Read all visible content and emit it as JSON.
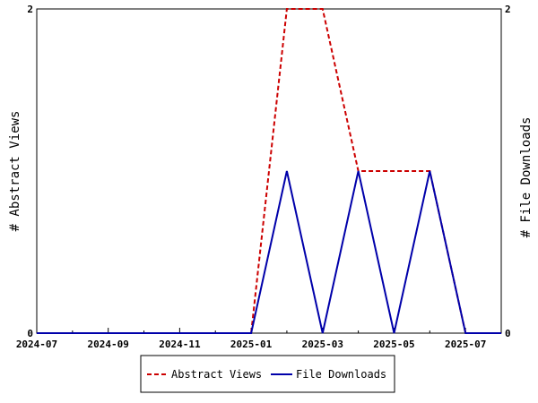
{
  "chart_data": {
    "type": "line",
    "x": [
      "2024-07",
      "2024-08",
      "2024-09",
      "2024-10",
      "2024-11",
      "2024-12",
      "2025-01",
      "2025-02",
      "2025-03",
      "2025-04",
      "2025-05",
      "2025-06",
      "2025-07",
      "2025-08"
    ],
    "xticks": [
      "2024-07",
      "2024-09",
      "2024-11",
      "2025-01",
      "2025-03",
      "2025-05",
      "2025-07"
    ],
    "series": [
      {
        "name": "Abstract Views",
        "axis": "left",
        "color": "#cc0000",
        "dash": "dashed",
        "values": [
          0,
          0,
          0,
          0,
          0,
          0,
          0,
          2,
          2,
          1,
          1,
          1,
          0,
          0
        ]
      },
      {
        "name": "File Downloads",
        "axis": "right",
        "color": "#0000aa",
        "dash": "solid",
        "values": [
          0,
          0,
          0,
          0,
          0,
          0,
          0,
          1,
          0,
          1,
          0,
          1,
          0,
          0
        ]
      }
    ],
    "ylabel_left": "# Abstract Views",
    "ylabel_right": "# File Downloads",
    "ylim_left": [
      0,
      2
    ],
    "ylim_right": [
      0,
      2
    ],
    "yticks_left": [
      "0",
      "2"
    ],
    "yticks_right": [
      "0",
      "2"
    ],
    "grid": false,
    "legend_position": "bottom-center"
  }
}
